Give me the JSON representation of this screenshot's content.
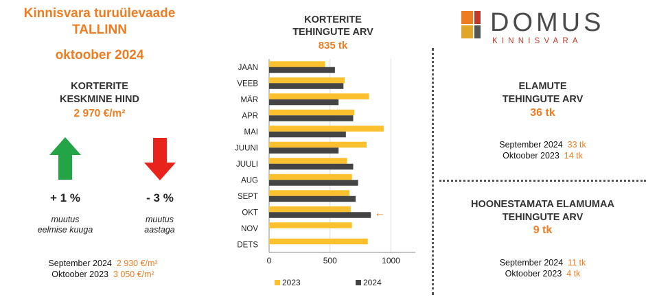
{
  "header": {
    "title_line1": "Kinnisvara turuülevaade",
    "title_line2": "TALLINN",
    "date": "oktoober 2024"
  },
  "logo": {
    "name": "DOMUS",
    "tagline": "KINNISVARA",
    "colors": [
      "#ee7d22",
      "#c0392b",
      "#e0a62a",
      "#555555"
    ]
  },
  "price": {
    "heading_line1": "KORTERITE",
    "heading_line2": "KESKMINE HIND",
    "value": "2 970 €/m²",
    "change_month": {
      "value": "+ 1 %",
      "label_line1": "muutus",
      "label_line2": "eelmise kuuga",
      "icon": "arrow-up-icon",
      "color": "#22a447"
    },
    "change_year": {
      "value": "- 3 %",
      "label_line1": "muutus",
      "label_line2": "aastaga",
      "icon": "arrow-down-icon",
      "color": "#e8231c"
    },
    "compare": [
      {
        "label": "September 2024",
        "value": "2 930 €/m²"
      },
      {
        "label": "Oktoober 2023",
        "value": "3 050 €/m²"
      }
    ]
  },
  "transactions": {
    "heading_line1": "KORTERITE",
    "heading_line2": "TEHINGUTE ARV",
    "value": "835 tk"
  },
  "chart_data": {
    "type": "bar",
    "orientation": "horizontal",
    "categories": [
      "JAAN",
      "VEEB",
      "MÄR",
      "APR",
      "MAI",
      "JUUNI",
      "JUULI",
      "AUG",
      "SEPT",
      "OKT",
      "NOV",
      "DETS"
    ],
    "series": [
      {
        "name": "2023",
        "color": "#fbc02d",
        "values": [
          460,
          620,
          820,
          700,
          940,
          800,
          640,
          680,
          660,
          670,
          680,
          810
        ]
      },
      {
        "name": "2024",
        "color": "#444444",
        "values": [
          540,
          610,
          570,
          690,
          630,
          570,
          690,
          730,
          710,
          835,
          null,
          null
        ]
      }
    ],
    "xlim": [
      0,
      1200
    ],
    "xticks": [
      0,
      500,
      1000
    ],
    "grid": true,
    "legend_position": "bottom",
    "annotation": {
      "category": "OKT",
      "symbol": "←",
      "color": "#ee7d22"
    }
  },
  "houses": {
    "heading_line1": "ELAMUTE",
    "heading_line2": "TEHINGUTE ARV",
    "value": "36 tk",
    "compare": [
      {
        "label": "September 2024",
        "value": "33 tk"
      },
      {
        "label": "Oktoober 2023",
        "value": "14 tk"
      }
    ]
  },
  "land": {
    "heading_line1": "HOONESTAMATA ELAMUMAA",
    "heading_line2": "TEHINGUTE ARV",
    "value": "9 tk",
    "compare": [
      {
        "label": "September 2024",
        "value": "11 tk"
      },
      {
        "label": "Oktoober 2023",
        "value": "4 tk"
      }
    ]
  }
}
